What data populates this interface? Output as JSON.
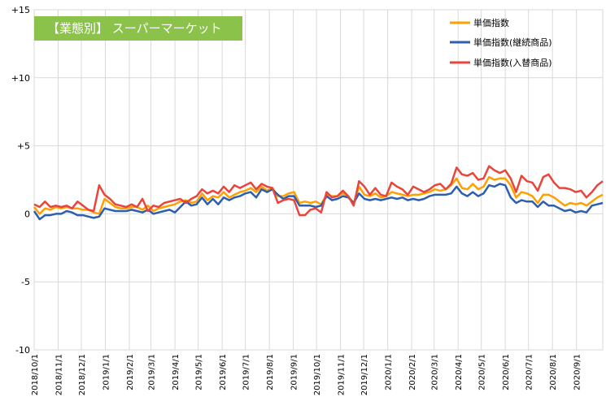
{
  "chart_data": {
    "type": "line",
    "banner": "【業態別】 スーパーマーケット",
    "ylim": [
      -10,
      15
    ],
    "yticks": [
      15,
      10,
      5,
      0,
      -5,
      -10
    ],
    "ytick_labels": [
      "+15",
      "+10",
      "+5",
      "0",
      "-5",
      "-10"
    ],
    "grid": true,
    "legend_position": "top-right",
    "x_tick_labels": [
      "2018/10/1",
      "2018/11/1",
      "2018/12/1",
      "2019/1/1",
      "2019/2/1",
      "2019/3/1",
      "2019/4/1",
      "2019/5/1",
      "2019/6/1",
      "2019/7/1",
      "2019/8/1",
      "2019/9/1",
      "2019/10/1",
      "2019/11/1",
      "2019/12/1",
      "2020/1/1",
      "2020/2/1",
      "2020/3/1",
      "2020/4/1",
      "2020/5/1",
      "2020/6/1",
      "2020/7/1",
      "2020/8/1",
      "2020/9/1"
    ],
    "x_tick_dates": [
      "2018-10-01",
      "2018-11-01",
      "2018-12-01",
      "2019-01-01",
      "2019-02-01",
      "2019-03-01",
      "2019-04-01",
      "2019-05-01",
      "2019-06-01",
      "2019-07-01",
      "2019-08-01",
      "2019-09-01",
      "2019-10-01",
      "2019-11-01",
      "2019-12-01",
      "2020-01-01",
      "2020-02-01",
      "2020-03-01",
      "2020-04-01",
      "2020-05-01",
      "2020-06-01",
      "2020-07-01",
      "2020-08-01",
      "2020-09-01"
    ],
    "x": [
      "2018-10-01",
      "2018-10-08",
      "2018-10-15",
      "2018-10-22",
      "2018-10-29",
      "2018-11-05",
      "2018-11-12",
      "2018-11-19",
      "2018-11-26",
      "2018-12-03",
      "2018-12-10",
      "2018-12-17",
      "2018-12-24",
      "2018-12-31",
      "2019-01-07",
      "2019-01-14",
      "2019-01-21",
      "2019-01-28",
      "2019-02-04",
      "2019-02-11",
      "2019-02-18",
      "2019-02-25",
      "2019-03-04",
      "2019-03-11",
      "2019-03-18",
      "2019-03-25",
      "2019-04-01",
      "2019-04-08",
      "2019-04-15",
      "2019-04-22",
      "2019-04-29",
      "2019-05-06",
      "2019-05-13",
      "2019-05-20",
      "2019-05-27",
      "2019-06-03",
      "2019-06-10",
      "2019-06-17",
      "2019-06-24",
      "2019-07-01",
      "2019-07-08",
      "2019-07-15",
      "2019-07-22",
      "2019-07-29",
      "2019-08-05",
      "2019-08-12",
      "2019-08-19",
      "2019-08-26",
      "2019-09-02",
      "2019-09-09",
      "2019-09-16",
      "2019-09-23",
      "2019-09-30",
      "2019-10-07",
      "2019-10-14",
      "2019-10-21",
      "2019-10-28",
      "2019-11-04",
      "2019-11-11",
      "2019-11-18",
      "2019-11-25",
      "2019-12-02",
      "2019-12-09",
      "2019-12-16",
      "2019-12-23",
      "2019-12-30",
      "2020-01-06",
      "2020-01-13",
      "2020-01-20",
      "2020-01-27",
      "2020-02-03",
      "2020-02-10",
      "2020-02-17",
      "2020-02-24",
      "2020-03-02",
      "2020-03-09",
      "2020-03-16",
      "2020-03-23",
      "2020-03-30",
      "2020-04-06",
      "2020-04-13",
      "2020-04-20",
      "2020-04-27",
      "2020-05-04",
      "2020-05-11",
      "2020-05-18",
      "2020-05-25",
      "2020-06-01",
      "2020-06-08",
      "2020-06-15",
      "2020-06-22",
      "2020-06-29",
      "2020-07-06",
      "2020-07-13",
      "2020-07-20",
      "2020-07-27",
      "2020-08-03",
      "2020-08-10",
      "2020-08-17",
      "2020-08-24",
      "2020-08-31",
      "2020-09-07",
      "2020-09-14",
      "2020-09-21",
      "2020-09-28",
      "2020-10-05"
    ],
    "series": [
      {
        "name": "単価指数",
        "color": "#ffa000",
        "values": [
          0.5,
          0.0,
          0.4,
          0.3,
          0.5,
          0.4,
          0.5,
          0.4,
          0.4,
          0.3,
          0.3,
          0.1,
          0.0,
          1.1,
          0.8,
          0.5,
          0.4,
          0.4,
          0.5,
          0.5,
          0.3,
          0.6,
          0.2,
          0.4,
          0.5,
          0.6,
          0.7,
          0.9,
          1.0,
          0.8,
          0.9,
          1.5,
          1.0,
          1.3,
          1.2,
          1.6,
          1.2,
          1.4,
          1.6,
          1.7,
          1.9,
          1.6,
          2.0,
          1.7,
          1.9,
          1.3,
          1.3,
          1.5,
          1.6,
          0.8,
          0.9,
          0.8,
          0.9,
          0.7,
          1.4,
          1.3,
          1.3,
          1.5,
          1.3,
          0.8,
          2.0,
          1.4,
          1.3,
          1.5,
          1.2,
          1.3,
          1.6,
          1.5,
          1.4,
          1.3,
          1.4,
          1.4,
          1.5,
          1.6,
          1.8,
          1.7,
          1.8,
          2.1,
          2.6,
          1.9,
          1.8,
          2.2,
          1.8,
          2.0,
          2.7,
          2.5,
          2.6,
          2.6,
          2.1,
          1.2,
          1.6,
          1.5,
          1.3,
          0.8,
          1.4,
          1.4,
          1.2,
          0.9,
          0.6,
          0.8,
          0.7,
          0.8,
          0.6,
          0.9,
          1.2,
          1.4
        ]
      },
      {
        "name": "単価指数(継続商品)",
        "color": "#2e5fae",
        "values": [
          0.2,
          -0.4,
          -0.1,
          -0.1,
          0.0,
          0.0,
          0.2,
          0.1,
          -0.1,
          -0.1,
          -0.2,
          -0.3,
          -0.2,
          0.4,
          0.3,
          0.2,
          0.2,
          0.2,
          0.3,
          0.2,
          0.1,
          0.3,
          0.0,
          0.1,
          0.2,
          0.3,
          0.1,
          0.5,
          0.9,
          0.6,
          0.7,
          1.2,
          0.7,
          1.1,
          0.7,
          1.2,
          1.0,
          1.2,
          1.3,
          1.5,
          1.6,
          1.2,
          1.8,
          1.6,
          1.8,
          1.4,
          1.1,
          1.3,
          1.3,
          0.6,
          0.6,
          0.6,
          0.5,
          0.6,
          1.3,
          1.0,
          1.1,
          1.3,
          1.2,
          0.8,
          1.5,
          1.1,
          1.0,
          1.1,
          1.0,
          1.1,
          1.2,
          1.1,
          1.2,
          1.0,
          1.1,
          1.0,
          1.1,
          1.3,
          1.4,
          1.4,
          1.4,
          1.5,
          2.0,
          1.5,
          1.3,
          1.6,
          1.3,
          1.5,
          2.1,
          2.0,
          2.2,
          2.1,
          1.2,
          0.8,
          1.0,
          0.9,
          0.9,
          0.5,
          0.9,
          0.6,
          0.6,
          0.4,
          0.2,
          0.3,
          0.1,
          0.2,
          0.1,
          0.6,
          0.7,
          0.8
        ]
      },
      {
        "name": "単価指数(入替商品)",
        "color": "#e8453c",
        "values": [
          0.7,
          0.5,
          0.9,
          0.5,
          0.6,
          0.5,
          0.6,
          0.4,
          0.9,
          0.6,
          0.3,
          0.2,
          2.1,
          1.4,
          1.1,
          0.7,
          0.6,
          0.5,
          0.7,
          0.5,
          1.1,
          0.2,
          0.6,
          0.5,
          0.8,
          0.9,
          1.0,
          1.1,
          0.8,
          1.1,
          1.3,
          1.8,
          1.5,
          1.7,
          1.5,
          2.0,
          1.6,
          2.1,
          1.9,
          2.1,
          2.3,
          1.8,
          2.2,
          2.0,
          1.9,
          0.8,
          1.0,
          1.1,
          1.0,
          -0.1,
          -0.1,
          0.3,
          0.4,
          0.1,
          1.6,
          1.2,
          1.3,
          1.7,
          1.3,
          0.6,
          2.4,
          2.0,
          1.4,
          1.9,
          1.4,
          1.3,
          2.3,
          2.0,
          1.8,
          1.4,
          2.0,
          1.8,
          1.6,
          1.8,
          2.1,
          2.2,
          1.8,
          2.2,
          3.4,
          2.9,
          2.8,
          3.0,
          2.5,
          2.6,
          3.5,
          3.2,
          3.0,
          3.2,
          2.6,
          1.6,
          2.8,
          2.4,
          2.3,
          1.7,
          2.7,
          2.9,
          2.3,
          1.9,
          1.9,
          1.8,
          1.6,
          1.7,
          1.2,
          1.6,
          2.1,
          2.4
        ]
      }
    ]
  }
}
